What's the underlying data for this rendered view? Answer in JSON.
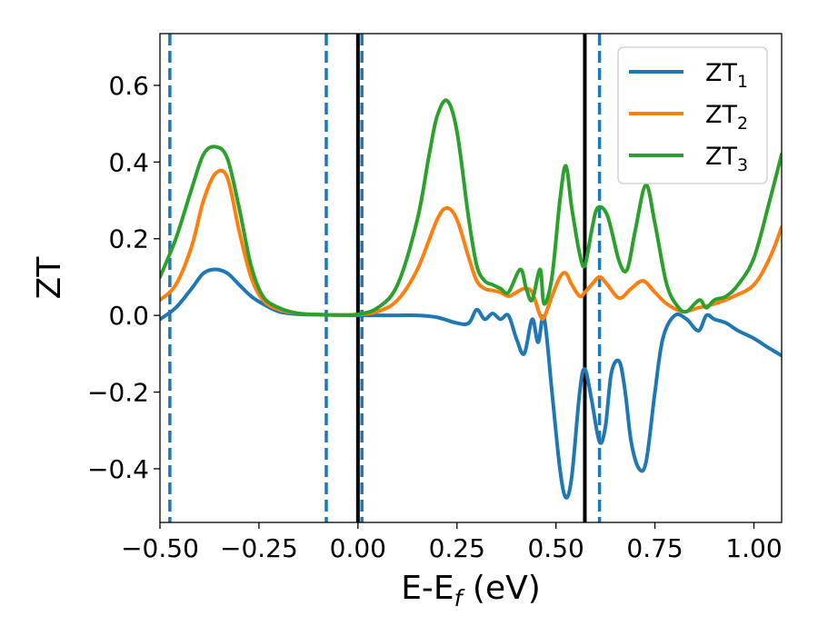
{
  "chart_data": {
    "type": "line",
    "xlabel": "E-E",
    "xlabel_sub": "f",
    "xlabel_unit": " (eV)",
    "ylabel": "ZT",
    "xlim": [
      -0.5,
      1.07
    ],
    "ylim": [
      -0.54,
      0.735
    ],
    "grid": false,
    "legend_position": "top-right",
    "x_ticks": [
      {
        "value": -0.5,
        "label": "−0.50"
      },
      {
        "value": -0.25,
        "label": "−0.25"
      },
      {
        "value": 0.0,
        "label": "0.00"
      },
      {
        "value": 0.25,
        "label": "0.25"
      },
      {
        "value": 0.5,
        "label": "0.50"
      },
      {
        "value": 0.75,
        "label": "0.75"
      },
      {
        "value": 1.0,
        "label": "1.00"
      }
    ],
    "y_ticks": [
      {
        "value": -0.4,
        "label": "−0.4"
      },
      {
        "value": -0.2,
        "label": "−0.2"
      },
      {
        "value": 0.0,
        "label": "0.0"
      },
      {
        "value": 0.2,
        "label": "0.2"
      },
      {
        "value": 0.4,
        "label": "0.4"
      },
      {
        "value": 0.6,
        "label": "0.6"
      }
    ],
    "vertical_lines": [
      {
        "x": -0.475,
        "style": "dashed",
        "color": "#1f77b4"
      },
      {
        "x": -0.08,
        "style": "dashed",
        "color": "#1f77b4"
      },
      {
        "x": 0.01,
        "style": "dashed",
        "color": "#1f77b4"
      },
      {
        "x": 0.61,
        "style": "dashed",
        "color": "#1f77b4"
      },
      {
        "x": 0.0,
        "style": "solid",
        "color": "#000000"
      },
      {
        "x": 0.573,
        "style": "solid",
        "color": "#000000"
      }
    ],
    "series": [
      {
        "name": "ZT",
        "sub": "1",
        "color": "#1f77b4",
        "x": [
          -0.5,
          -0.46,
          -0.42,
          -0.39,
          -0.36,
          -0.33,
          -0.3,
          -0.27,
          -0.24,
          -0.2,
          -0.15,
          -0.1,
          -0.05,
          0.0,
          0.05,
          0.1,
          0.15,
          0.2,
          0.25,
          0.28,
          0.3,
          0.32,
          0.34,
          0.36,
          0.38,
          0.4,
          0.42,
          0.44,
          0.455,
          0.47,
          0.49,
          0.51,
          0.525,
          0.54,
          0.56,
          0.573,
          0.59,
          0.61,
          0.625,
          0.64,
          0.66,
          0.675,
          0.69,
          0.71,
          0.728,
          0.75,
          0.77,
          0.8,
          0.83,
          0.86,
          0.88,
          0.9,
          0.93,
          0.96,
          1.0,
          1.03,
          1.07
        ],
        "y": [
          -0.01,
          0.02,
          0.07,
          0.11,
          0.12,
          0.11,
          0.08,
          0.05,
          0.03,
          0.01,
          0.003,
          0.002,
          0.001,
          0.0,
          0.0,
          0.0,
          0.0,
          -0.005,
          -0.02,
          -0.02,
          0.015,
          -0.01,
          0.005,
          -0.01,
          0.0,
          -0.06,
          -0.1,
          -0.01,
          -0.07,
          -0.005,
          -0.2,
          -0.4,
          -0.475,
          -0.42,
          -0.2,
          -0.14,
          -0.22,
          -0.33,
          -0.29,
          -0.15,
          -0.12,
          -0.2,
          -0.33,
          -0.4,
          -0.38,
          -0.2,
          -0.06,
          0.0,
          -0.01,
          -0.04,
          0.0,
          -0.01,
          -0.02,
          -0.04,
          -0.06,
          -0.08,
          -0.105
        ]
      },
      {
        "name": "ZT",
        "sub": "2",
        "color": "#ff7f0e",
        "x": [
          -0.5,
          -0.46,
          -0.42,
          -0.39,
          -0.36,
          -0.33,
          -0.3,
          -0.27,
          -0.24,
          -0.2,
          -0.15,
          -0.1,
          -0.05,
          0.0,
          0.05,
          0.1,
          0.15,
          0.2,
          0.225,
          0.25,
          0.28,
          0.3,
          0.32,
          0.34,
          0.36,
          0.38,
          0.4,
          0.42,
          0.44,
          0.46,
          0.47,
          0.49,
          0.51,
          0.525,
          0.54,
          0.56,
          0.573,
          0.59,
          0.61,
          0.63,
          0.66,
          0.69,
          0.72,
          0.75,
          0.78,
          0.82,
          0.86,
          0.9,
          0.95,
          1.0,
          1.04,
          1.07
        ],
        "y": [
          0.04,
          0.08,
          0.18,
          0.3,
          0.37,
          0.36,
          0.22,
          0.1,
          0.04,
          0.015,
          0.005,
          0.002,
          0.001,
          0.002,
          0.01,
          0.04,
          0.12,
          0.25,
          0.28,
          0.25,
          0.15,
          0.09,
          0.07,
          0.065,
          0.06,
          0.05,
          0.06,
          0.07,
          0.06,
          0.0,
          -0.005,
          0.05,
          0.1,
          0.11,
          0.08,
          0.05,
          0.06,
          0.08,
          0.1,
          0.08,
          0.045,
          0.07,
          0.09,
          0.06,
          0.03,
          0.01,
          0.02,
          0.03,
          0.05,
          0.08,
          0.15,
          0.23
        ]
      },
      {
        "name": "ZT",
        "sub": "3",
        "color": "#2ca02c",
        "x": [
          -0.5,
          -0.46,
          -0.42,
          -0.39,
          -0.36,
          -0.33,
          -0.3,
          -0.27,
          -0.24,
          -0.2,
          -0.15,
          -0.1,
          -0.05,
          0.0,
          0.05,
          0.1,
          0.15,
          0.18,
          0.2,
          0.225,
          0.25,
          0.28,
          0.3,
          0.32,
          0.34,
          0.36,
          0.38,
          0.41,
          0.425,
          0.44,
          0.46,
          0.47,
          0.49,
          0.51,
          0.525,
          0.54,
          0.56,
          0.573,
          0.59,
          0.605,
          0.63,
          0.66,
          0.68,
          0.7,
          0.727,
          0.75,
          0.78,
          0.81,
          0.83,
          0.85,
          0.865,
          0.88,
          0.9,
          0.93,
          0.96,
          1.0,
          1.04,
          1.07
        ],
        "y": [
          0.1,
          0.2,
          0.33,
          0.42,
          0.44,
          0.41,
          0.28,
          0.13,
          0.05,
          0.02,
          0.005,
          0.002,
          0.001,
          0.003,
          0.02,
          0.08,
          0.25,
          0.42,
          0.52,
          0.56,
          0.48,
          0.25,
          0.13,
          0.09,
          0.08,
          0.07,
          0.06,
          0.12,
          0.07,
          0.04,
          0.12,
          0.03,
          0.1,
          0.3,
          0.39,
          0.28,
          0.16,
          0.13,
          0.22,
          0.28,
          0.26,
          0.14,
          0.12,
          0.22,
          0.34,
          0.24,
          0.08,
          0.02,
          0.01,
          0.03,
          0.04,
          0.02,
          0.04,
          0.05,
          0.08,
          0.15,
          0.3,
          0.42
        ]
      }
    ]
  }
}
